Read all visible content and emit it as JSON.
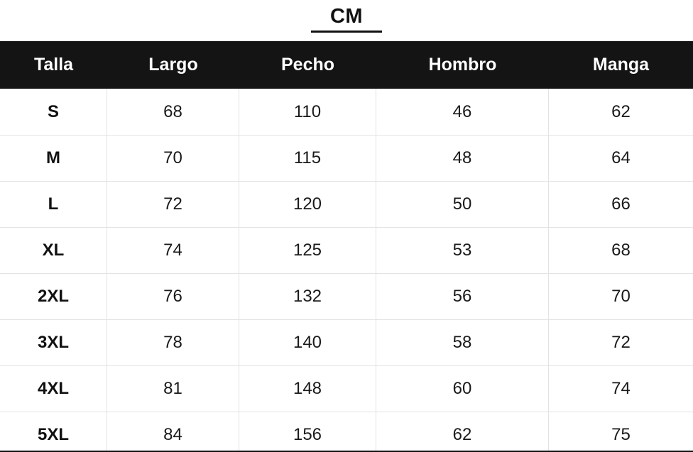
{
  "chart_data": {
    "type": "table",
    "title": "CM",
    "columns": [
      "Talla",
      "Largo",
      "Pecho",
      "Hombro",
      "Manga"
    ],
    "rows": [
      [
        "S",
        68,
        110,
        46,
        62
      ],
      [
        "M",
        70,
        115,
        48,
        64
      ],
      [
        "L",
        72,
        120,
        50,
        66
      ],
      [
        "XL",
        74,
        125,
        53,
        68
      ],
      [
        "2XL",
        76,
        132,
        56,
        70
      ],
      [
        "3XL",
        78,
        140,
        58,
        72
      ],
      [
        "4XL",
        81,
        148,
        60,
        74
      ],
      [
        "5XL",
        84,
        156,
        62,
        75
      ]
    ],
    "layout": {
      "header_position": "top",
      "grid": true,
      "title_underlined": true
    }
  },
  "colors": {
    "header_bg": "#141414",
    "header_text": "#ffffff",
    "body_text": "#1a1a1a",
    "grid_line": "#e3e3e3",
    "background": "#ffffff"
  }
}
